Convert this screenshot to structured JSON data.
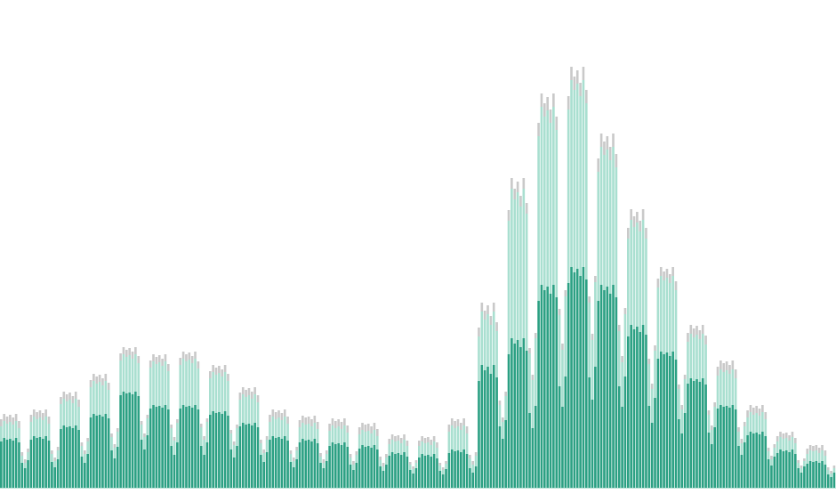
{
  "chart_data": {
    "type": "bar",
    "stacked": true,
    "title": "",
    "xlabel": "",
    "ylabel": "",
    "grid": false,
    "ylim": [
      0,
      490
    ],
    "colors": [
      "#2ba083",
      "#a9dfd0",
      "#c9c9c9"
    ],
    "series": [
      {
        "values": [
          52,
          56,
          54,
          55,
          53,
          56,
          51,
          28,
          22,
          31,
          54,
          58,
          56,
          57,
          55,
          58,
          53,
          29,
          23,
          32,
          66,
          70,
          68,
          69,
          67,
          70,
          65,
          35,
          28,
          38,
          79,
          83,
          81,
          82,
          80,
          83,
          78,
          42,
          33,
          46,
          104,
          108,
          106,
          107,
          105,
          108,
          103,
          54,
          43,
          59,
          89,
          93,
          91,
          92,
          90,
          93,
          88,
          47,
          37,
          51,
          89,
          93,
          91,
          92,
          90,
          93,
          88,
          47,
          37,
          51,
          82,
          86,
          84,
          85,
          83,
          86,
          81,
          43,
          34,
          47,
          69,
          73,
          71,
          72,
          70,
          73,
          68,
          37,
          29,
          40,
          54,
          58,
          56,
          57,
          55,
          58,
          53,
          29,
          23,
          32,
          51,
          55,
          53,
          54,
          52,
          55,
          50,
          28,
          22,
          30,
          47,
          51,
          49,
          50,
          48,
          51,
          46,
          26,
          20,
          28,
          44,
          48,
          46,
          47,
          45,
          48,
          43,
          24,
          19,
          26,
          36,
          40,
          38,
          39,
          37,
          40,
          35,
          20,
          16,
          22,
          34,
          38,
          36,
          37,
          35,
          38,
          33,
          19,
          15,
          21,
          39,
          43,
          41,
          42,
          40,
          43,
          38,
          22,
          17,
          24,
          120,
          138,
          132,
          136,
          128,
          138,
          124,
          69,
          55,
          76,
          150,
          168,
          162,
          166,
          158,
          168,
          154,
          84,
          67,
          92,
          210,
          228,
          222,
          226,
          218,
          228,
          214,
          114,
          91,
          125,
          230,
          248,
          242,
          246,
          238,
          248,
          234,
          124,
          99,
          136,
          210,
          228,
          222,
          226,
          218,
          228,
          214,
          114,
          91,
          125,
          170,
          183,
          178,
          181,
          175,
          183,
          172,
          92,
          73,
          101,
          145,
          153,
          150,
          152,
          148,
          153,
          144,
          77,
          61,
          84,
          117,
          123,
          120,
          122,
          119,
          123,
          116,
          62,
          49,
          68,
          89,
          93,
          91,
          92,
          90,
          93,
          88,
          47,
          37,
          51,
          59,
          63,
          61,
          62,
          60,
          63,
          58,
          32,
          25,
          35,
          39,
          43,
          41,
          42,
          40,
          43,
          38,
          22,
          17,
          24,
          27,
          30,
          29,
          30,
          28,
          30,
          26,
          15,
          12,
          17
        ]
      },
      {
        "values": [
          17,
          19,
          18,
          19,
          18,
          19,
          16,
          8,
          6,
          9,
          20,
          22,
          21,
          22,
          21,
          22,
          19,
          9,
          7,
          10,
          28,
          30,
          29,
          30,
          28,
          30,
          26,
          12,
          10,
          14,
          34,
          37,
          36,
          37,
          35,
          37,
          32,
          15,
          12,
          17,
          39,
          42,
          41,
          42,
          40,
          42,
          37,
          17,
          14,
          19,
          46,
          49,
          48,
          49,
          47,
          49,
          43,
          20,
          16,
          22,
          49,
          52,
          51,
          52,
          50,
          52,
          46,
          21,
          17,
          23,
          41,
          44,
          43,
          44,
          42,
          44,
          39,
          18,
          14,
          20,
          30,
          32,
          31,
          32,
          30,
          32,
          28,
          13,
          10,
          14,
          20,
          22,
          21,
          22,
          21,
          22,
          19,
          9,
          7,
          10,
          17,
          18,
          18,
          18,
          17,
          18,
          16,
          7,
          6,
          8,
          17,
          19,
          18,
          19,
          18,
          19,
          16,
          8,
          6,
          9,
          16,
          17,
          17,
          17,
          16,
          17,
          15,
          7,
          5,
          8,
          13,
          14,
          14,
          14,
          13,
          14,
          12,
          6,
          5,
          6,
          13,
          14,
          14,
          14,
          13,
          14,
          12,
          6,
          5,
          6,
          24,
          27,
          26,
          27,
          25,
          27,
          23,
          11,
          9,
          12,
          50,
          60,
          57,
          59,
          55,
          60,
          52,
          24,
          19,
          27,
          150,
          168,
          162,
          166,
          158,
          168,
          154,
          67,
          54,
          76,
          185,
          200,
          195,
          198,
          192,
          200,
          188,
          80,
          64,
          90,
          195,
          210,
          205,
          208,
          202,
          210,
          198,
          84,
          67,
          95,
          145,
          155,
          152,
          154,
          150,
          155,
          146,
          62,
          50,
          70,
          110,
          118,
          115,
          117,
          113,
          118,
          108,
          47,
          38,
          53,
          80,
          85,
          83,
          84,
          82,
          85,
          78,
          34,
          27,
          38,
          47,
          50,
          49,
          50,
          48,
          50,
          45,
          20,
          16,
          23,
          37,
          40,
          39,
          40,
          38,
          40,
          35,
          16,
          13,
          18,
          20,
          22,
          21,
          22,
          21,
          22,
          19,
          9,
          7,
          10,
          13,
          14,
          14,
          14,
          13,
          14,
          12,
          6,
          5,
          6,
          11,
          12,
          12,
          12,
          11,
          12,
          10,
          5,
          4,
          5
        ]
      },
      {
        "values": [
          8,
          8,
          8,
          8,
          8,
          8,
          8,
          4,
          4,
          4,
          8,
          8,
          8,
          8,
          8,
          8,
          8,
          4,
          4,
          4,
          8,
          8,
          8,
          8,
          8,
          8,
          8,
          4,
          4,
          4,
          8,
          8,
          8,
          8,
          8,
          8,
          8,
          4,
          4,
          4,
          8,
          8,
          8,
          8,
          8,
          8,
          8,
          4,
          4,
          4,
          8,
          8,
          8,
          8,
          8,
          8,
          8,
          4,
          4,
          4,
          8,
          8,
          8,
          8,
          8,
          8,
          8,
          4,
          4,
          4,
          8,
          8,
          8,
          8,
          8,
          8,
          8,
          4,
          4,
          4,
          8,
          8,
          8,
          8,
          8,
          8,
          8,
          4,
          4,
          4,
          8,
          8,
          8,
          8,
          8,
          8,
          8,
          4,
          4,
          4,
          8,
          8,
          8,
          8,
          8,
          8,
          8,
          4,
          4,
          4,
          8,
          8,
          8,
          8,
          8,
          8,
          8,
          4,
          4,
          4,
          8,
          8,
          8,
          8,
          8,
          8,
          8,
          4,
          4,
          4,
          6,
          6,
          6,
          6,
          6,
          6,
          6,
          3,
          3,
          3,
          6,
          6,
          6,
          6,
          6,
          6,
          6,
          3,
          3,
          3,
          8,
          8,
          8,
          8,
          8,
          8,
          8,
          4,
          4,
          4,
          10,
          10,
          10,
          10,
          10,
          10,
          10,
          5,
          5,
          5,
          12,
          12,
          12,
          12,
          12,
          12,
          12,
          6,
          6,
          6,
          15,
          15,
          15,
          15,
          15,
          15,
          15,
          7,
          7,
          7,
          15,
          15,
          15,
          15,
          15,
          15,
          15,
          7,
          7,
          7,
          15,
          15,
          15,
          15,
          15,
          15,
          15,
          7,
          7,
          7,
          12,
          12,
          12,
          12,
          12,
          12,
          12,
          6,
          6,
          6,
          10,
          10,
          10,
          10,
          10,
          10,
          10,
          5,
          5,
          5,
          10,
          10,
          10,
          10,
          10,
          10,
          10,
          5,
          5,
          5,
          10,
          10,
          10,
          10,
          10,
          10,
          10,
          5,
          5,
          5,
          8,
          8,
          8,
          8,
          8,
          8,
          8,
          4,
          4,
          4,
          6,
          6,
          6,
          6,
          6,
          6,
          6,
          3,
          3,
          3,
          6,
          6,
          6,
          6,
          6,
          6,
          6,
          3,
          3,
          3
        ]
      }
    ]
  }
}
